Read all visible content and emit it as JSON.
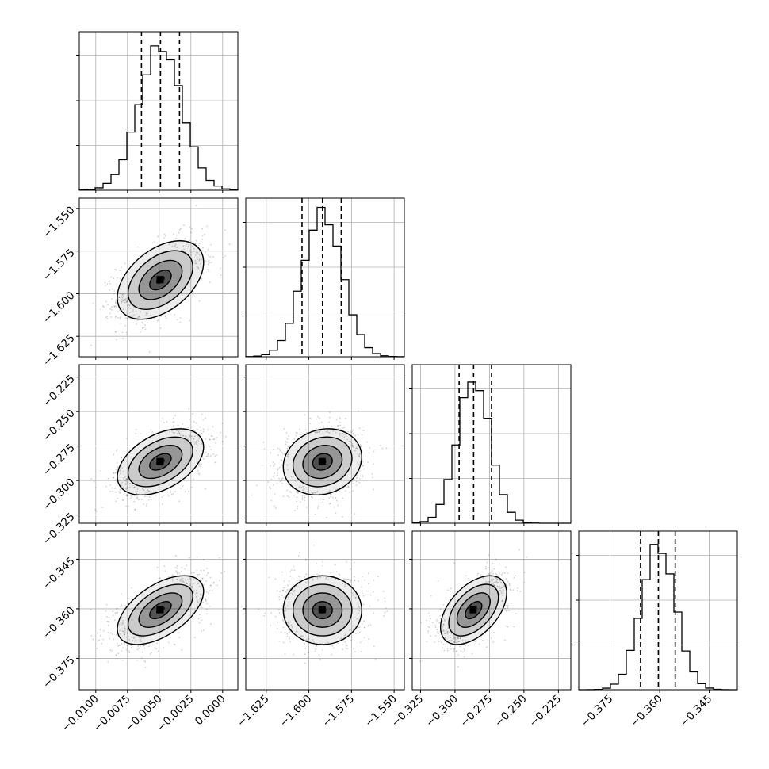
{
  "chart_data": {
    "type": "corner",
    "title": "",
    "grid": true,
    "dimensions": 4,
    "axes": [
      {
        "index": 0,
        "range": [
          -0.0113,
          0.0012
        ],
        "ticks": [
          -0.01,
          -0.0075,
          -0.005,
          -0.0025,
          0.0
        ],
        "tick_labels": [
          "−0.0100",
          "−0.0075",
          "−0.0050",
          "−0.0025",
          "0.0000"
        ],
        "quantiles": [
          -0.0064,
          -0.0049,
          -0.0034
        ],
        "median": -0.0049,
        "sigma": 0.0017
      },
      {
        "index": 1,
        "range": [
          -1.637,
          -1.544
        ],
        "ticks": [
          -1.625,
          -1.6,
          -1.575,
          -1.55
        ],
        "tick_labels": [
          "−1.625",
          "−1.600",
          "−1.575",
          "−1.550"
        ],
        "quantiles": [
          -1.604,
          -1.592,
          -1.581
        ],
        "median": -1.592,
        "sigma": 0.0115
      },
      {
        "index": 2,
        "range": [
          -0.331,
          -0.216
        ],
        "ticks": [
          -0.325,
          -0.3,
          -0.275,
          -0.25,
          -0.225
        ],
        "tick_labels": [
          "−0.325",
          "−0.300",
          "−0.275",
          "−0.250",
          "−0.225"
        ],
        "quantiles": [
          -0.297,
          -0.2865,
          -0.2735
        ],
        "median": -0.2865,
        "sigma": 0.012
      },
      {
        "index": 3,
        "range": [
          -0.3845,
          -0.3365
        ],
        "ticks": [
          -0.375,
          -0.36,
          -0.345
        ],
        "tick_labels": [
          "−0.375",
          "−0.360",
          "−0.345"
        ],
        "left_ticks": [
          -0.375,
          -0.36,
          -0.345
        ],
        "left_tick_labels": [
          "−0.375",
          "−0.360",
          "−0.345"
        ],
        "quantiles": [
          -0.3658,
          -0.3604,
          -0.3553
        ],
        "median": -0.3604,
        "sigma": 0.0052
      }
    ],
    "correlations": [
      {
        "pair": [
          0,
          1
        ],
        "r": 0.45
      },
      {
        "pair": [
          0,
          2
        ],
        "r": 0.45
      },
      {
        "pair": [
          1,
          2
        ],
        "r": 0.15
      },
      {
        "pair": [
          0,
          3
        ],
        "r": 0.55
      },
      {
        "pair": [
          1,
          3
        ],
        "r": 0.0
      },
      {
        "pair": [
          2,
          3
        ],
        "r": 0.5
      }
    ],
    "contour_levels_sigma": [
      0.5,
      1.0,
      1.5,
      2.0
    ],
    "colors": {
      "line": "#000000",
      "grid": "#b0b0b0",
      "scatter": "#000000"
    }
  }
}
